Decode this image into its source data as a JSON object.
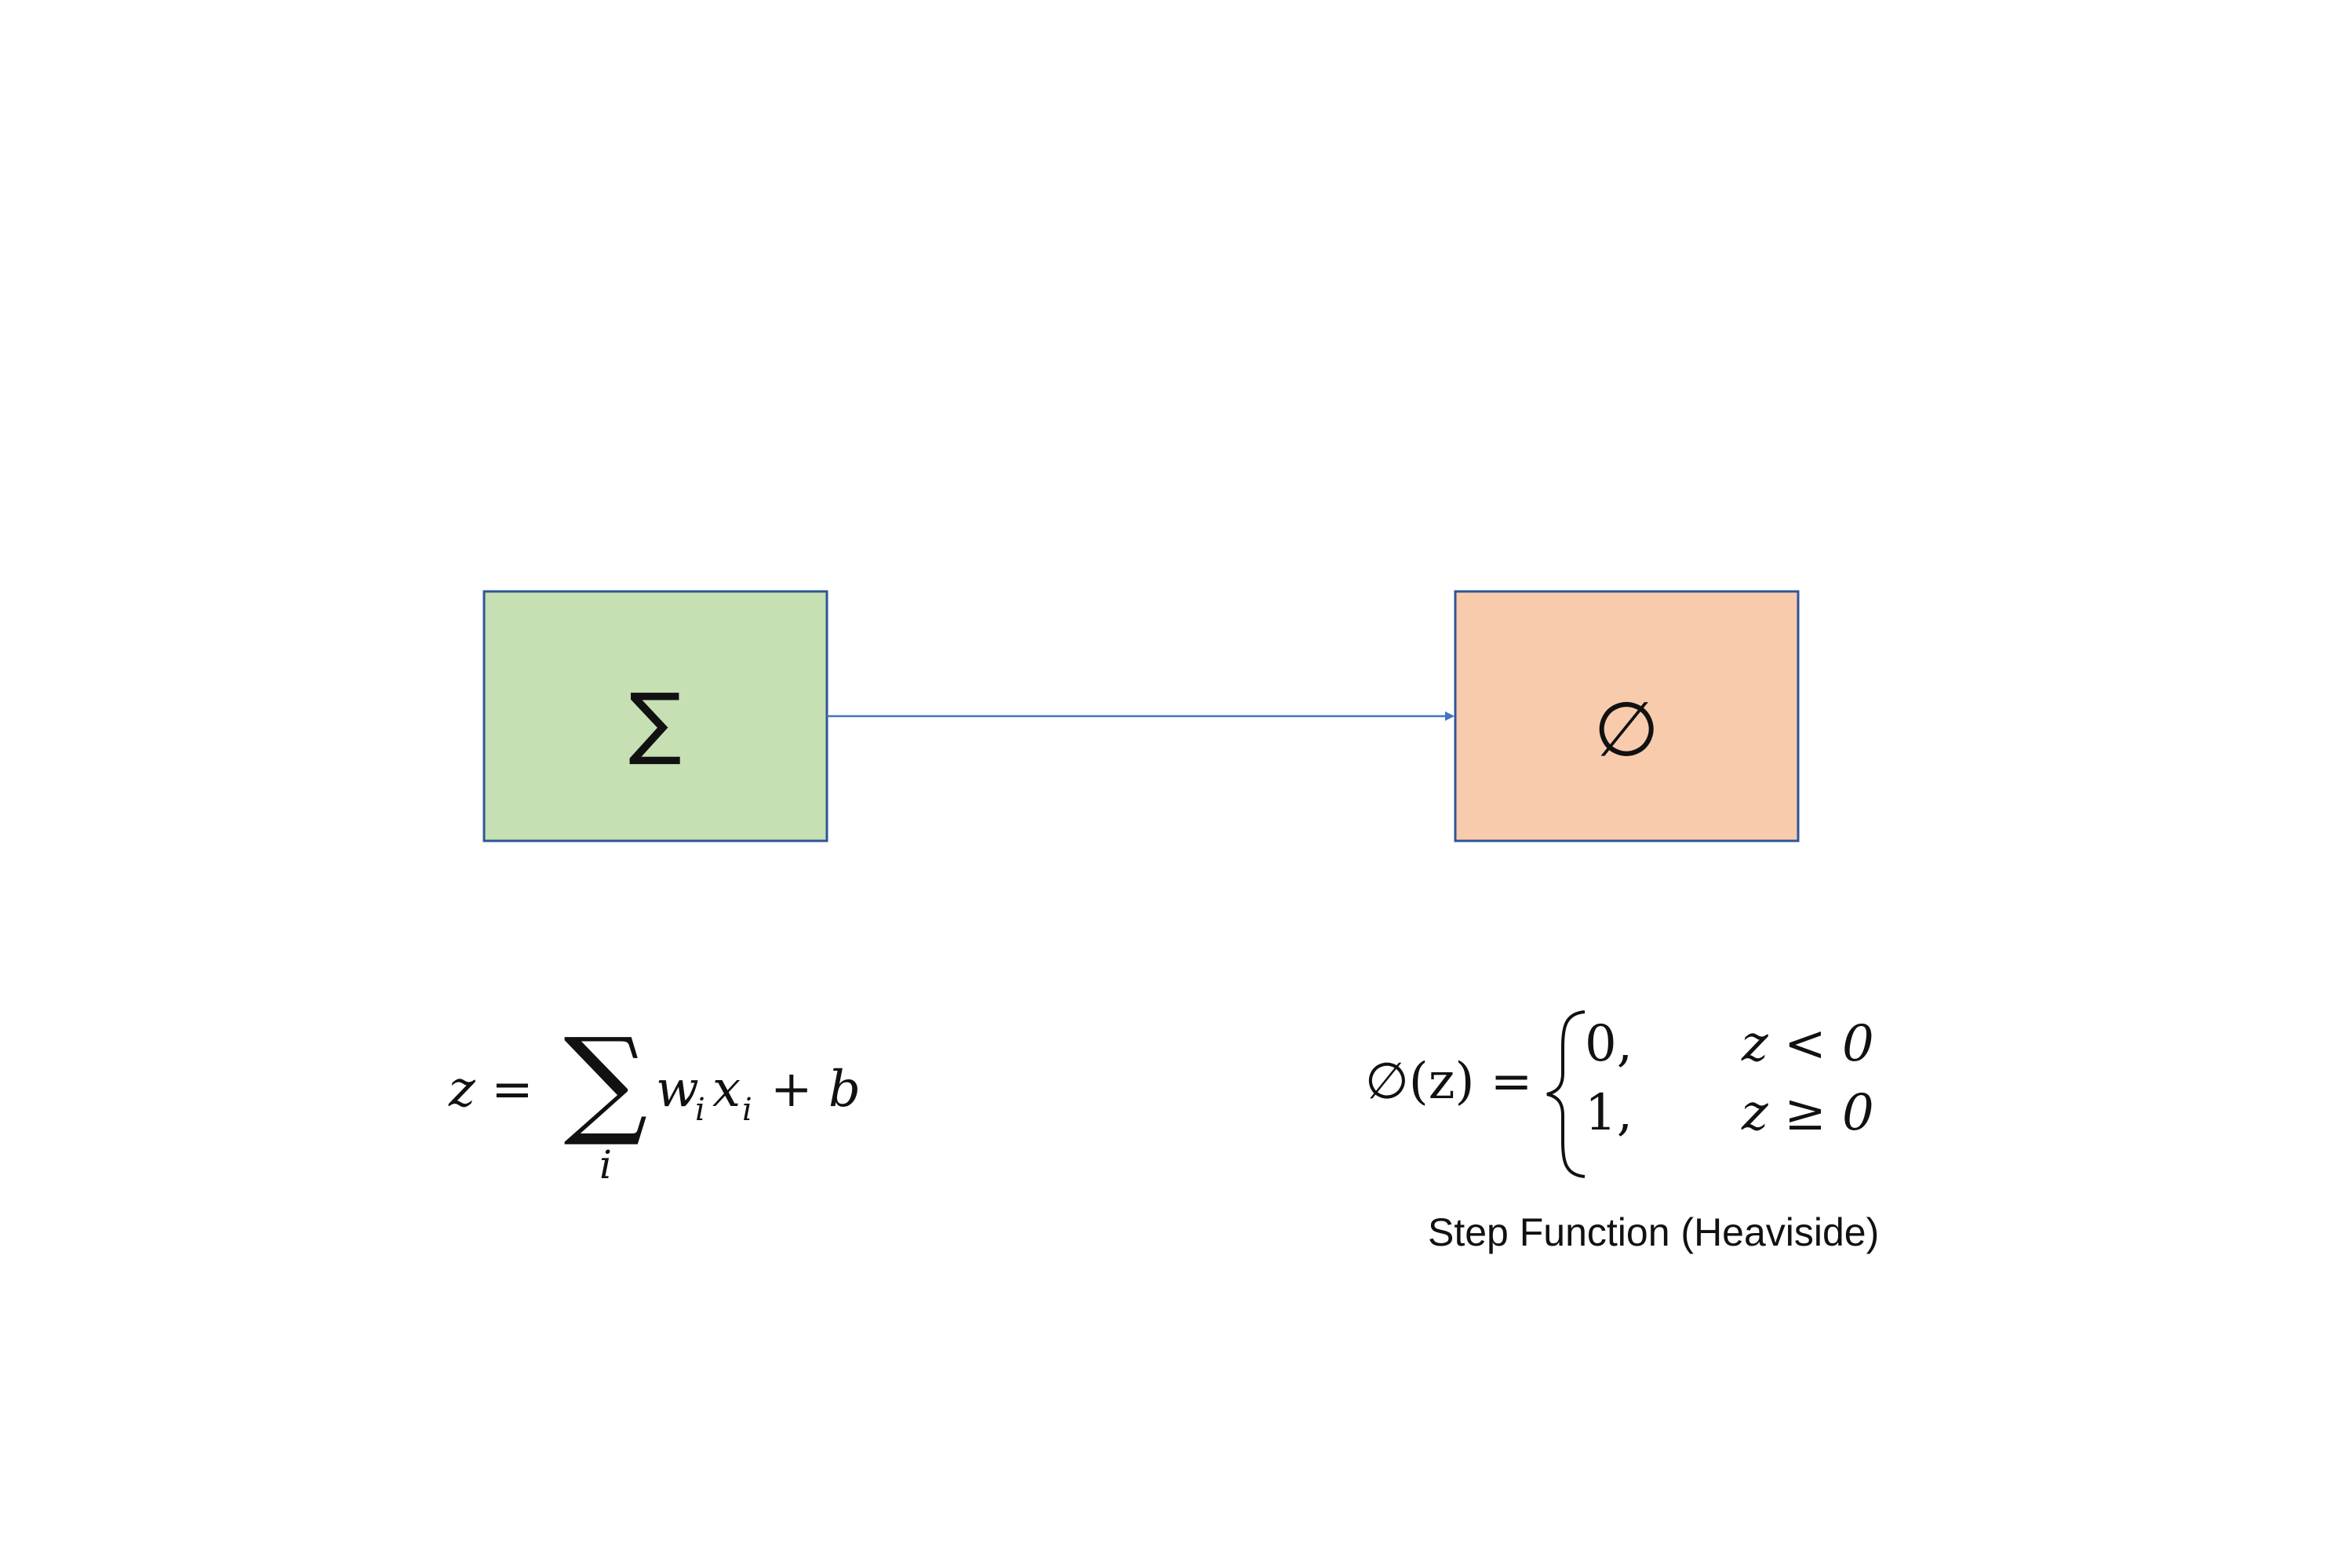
{
  "colors": {
    "sum_box_fill": "#c6e0b4",
    "activation_box_fill": "#f8cbad",
    "box_border": "#2f5597",
    "arrow": "#4472c4",
    "text": "#111111"
  },
  "boxes": {
    "sum": {
      "symbol": "∑"
    },
    "activation": {
      "symbol": "∅"
    }
  },
  "formula_sum": {
    "lhs": "z =",
    "operator": "∑",
    "index": "i",
    "w": "w",
    "w_sub": "i",
    "x": "x",
    "x_sub": "i",
    "tail": "+ b"
  },
  "formula_step": {
    "lhs": "∅(z) =",
    "case1_value": "0,",
    "case1_condition": "z < 0",
    "case2_value": "1,",
    "case2_condition": "z ≥ 0"
  },
  "caption": "Step Function (Heaviside)"
}
